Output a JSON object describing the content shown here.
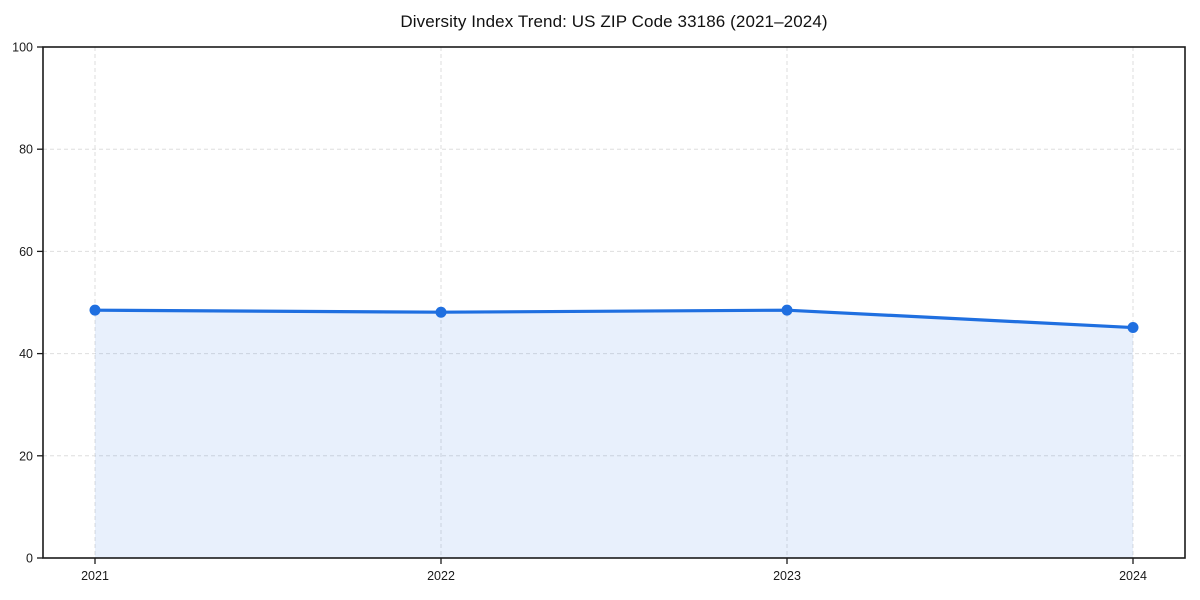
{
  "page": {
    "background": "#ffffff"
  },
  "chart_data": {
    "type": "area",
    "title": "Diversity Index Trend: US ZIP Code 33186 (2021–2024)",
    "x": [
      2021,
      2022,
      2023,
      2024
    ],
    "x_tick_labels": [
      "2021",
      "2022",
      "2023",
      "2024"
    ],
    "values": [
      48.5,
      48.1,
      48.5,
      45.1
    ],
    "xlabel": "",
    "ylabel": "",
    "ylim": [
      0,
      100
    ],
    "yticks": [
      0,
      20,
      40,
      60,
      80,
      100
    ],
    "grid": true,
    "grid_style": "dashed",
    "legend_position": "none",
    "colors": {
      "line": "#1f6fe0",
      "marker": "#1f6fe0",
      "fill": "#1f6fe0",
      "fill_opacity": 0.1,
      "grid": "#dedede",
      "spine": "#1a1a1a",
      "text": "#1a1a1a",
      "background": "#ffffff"
    }
  }
}
